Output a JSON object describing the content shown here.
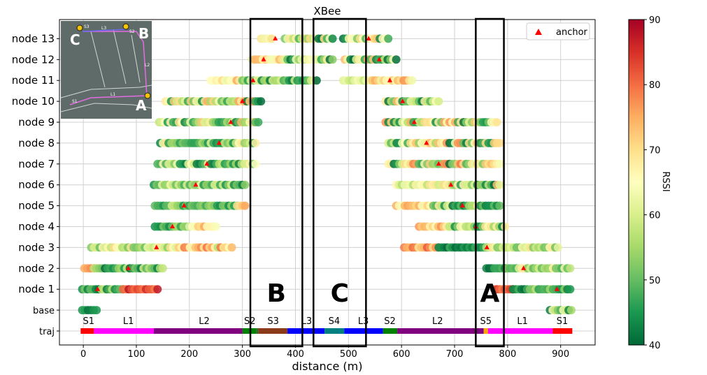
{
  "chart_data": {
    "type": "scatter",
    "title": "XBee",
    "xlabel": "distance (m)",
    "xlim": [
      -45,
      965
    ],
    "xticks": [
      "0",
      "100",
      "200",
      "300",
      "400",
      "500",
      "600",
      "700",
      "800",
      "900"
    ],
    "xtick_values": [
      0,
      100,
      200,
      300,
      400,
      500,
      600,
      700,
      800,
      900
    ],
    "rows": [
      "traj",
      "base",
      "node 1",
      "node 2",
      "node 3",
      "node 4",
      "node 5",
      "node 6",
      "node 7",
      "node 8",
      "node 9",
      "node 10",
      "node 11",
      "node 12",
      "node 13"
    ],
    "grid": true,
    "colorbar": {
      "label": "RSSI",
      "min": 40,
      "max": 90,
      "ticks": [
        "40",
        "50",
        "60",
        "70",
        "80",
        "90"
      ],
      "tick_values": [
        40,
        50,
        60,
        70,
        80,
        90
      ]
    },
    "legend": {
      "label": "anchor",
      "placement": "top-right"
    },
    "segments": [
      {
        "label": "S1",
        "from": -5,
        "to": 20,
        "color": "#ff0000"
      },
      {
        "label": "L1",
        "from": 20,
        "to": 133,
        "color": "#ff00ff"
      },
      {
        "label": "L2",
        "from": 133,
        "to": 300,
        "color": "#800080"
      },
      {
        "label": "S2",
        "from": 300,
        "to": 326,
        "color": "#008000"
      },
      {
        "label": "",
        "from": 326,
        "to": 330,
        "color": "#2d6b2d"
      },
      {
        "label": "S3",
        "from": 330,
        "to": 385,
        "color": "#8b3a1a"
      },
      {
        "label": "L3",
        "from": 385,
        "to": 455,
        "color": "#0000ff"
      },
      {
        "label": "S4",
        "from": 455,
        "to": 492,
        "color": "#008080"
      },
      {
        "label": "L3",
        "from": 492,
        "to": 565,
        "color": "#0000ff"
      },
      {
        "label": "S2",
        "from": 565,
        "to": 592,
        "color": "#008000"
      },
      {
        "label": "L2",
        "from": 592,
        "to": 755,
        "color": "#800080"
      },
      {
        "label": "S5",
        "from": 755,
        "to": 763,
        "color": "#ffa500"
      },
      {
        "label": "L1",
        "from": 763,
        "to": 885,
        "color": "#ff00ff"
      },
      {
        "label": "S1",
        "from": 885,
        "to": 922,
        "color": "#ff0000"
      }
    ],
    "segment_label_positions": [
      10,
      85,
      228,
      314,
      358,
      421,
      473,
      528,
      578,
      668,
      759,
      828,
      903
    ],
    "series": [
      {
        "name": "base",
        "bands": [
          {
            "from": -2,
            "to": 25,
            "rssi": [
              40,
              50
            ]
          },
          {
            "from": 880,
            "to": 920,
            "rssi": [
              40,
              70
            ]
          }
        ],
        "anchors": []
      },
      {
        "name": "node 1",
        "bands": [
          {
            "from": -2,
            "to": 75,
            "rssi": [
              40,
              58
            ]
          },
          {
            "from": 75,
            "to": 140,
            "rssi": [
              78,
              88
            ]
          },
          {
            "from": 775,
            "to": 810,
            "rssi": [
              76,
              86
            ]
          },
          {
            "from": 810,
            "to": 918,
            "rssi": [
              40,
              58
            ]
          }
        ],
        "anchors": [
          27,
          893
        ]
      },
      {
        "name": "node 2",
        "bands": [
          {
            "from": 2,
            "to": 20,
            "rssi": [
              65,
              78
            ]
          },
          {
            "from": 20,
            "to": 150,
            "rssi": [
              40,
              60
            ]
          },
          {
            "from": 760,
            "to": 800,
            "rssi": [
              40,
              50
            ]
          },
          {
            "from": 800,
            "to": 918,
            "rssi": [
              48,
              72
            ]
          }
        ],
        "anchors": [
          85,
          830
        ]
      },
      {
        "name": "node 3",
        "bands": [
          {
            "from": 15,
            "to": 180,
            "rssi": [
              50,
              72
            ]
          },
          {
            "from": 180,
            "to": 280,
            "rssi": [
              55,
              80
            ]
          },
          {
            "from": 605,
            "to": 670,
            "rssi": [
              68,
              82
            ]
          },
          {
            "from": 670,
            "to": 760,
            "rssi": [
              40,
              48
            ]
          },
          {
            "from": 760,
            "to": 895,
            "rssi": [
              50,
              72
            ]
          }
        ],
        "anchors": [
          138,
          761
        ]
      },
      {
        "name": "node 4",
        "bands": [
          {
            "from": 135,
            "to": 200,
            "rssi": [
              40,
              56
            ]
          },
          {
            "from": 200,
            "to": 250,
            "rssi": [
              62,
              76
            ]
          },
          {
            "from": 633,
            "to": 690,
            "rssi": [
              62,
              78
            ]
          },
          {
            "from": 690,
            "to": 795,
            "rssi": [
              40,
              72
            ]
          }
        ],
        "anchors": [
          168,
          740
        ]
      },
      {
        "name": "node 5",
        "bands": [
          {
            "from": 135,
            "to": 290,
            "rssi": [
              44,
              60
            ]
          },
          {
            "from": 290,
            "to": 305,
            "rssi": [
              66,
              76
            ]
          },
          {
            "from": 590,
            "to": 660,
            "rssi": [
              64,
              76
            ]
          },
          {
            "from": 660,
            "to": 785,
            "rssi": [
              40,
              70
            ]
          }
        ],
        "anchors": [
          190,
          715
        ]
      },
      {
        "name": "node 6",
        "bands": [
          {
            "from": 133,
            "to": 305,
            "rssi": [
              42,
              66
            ]
          },
          {
            "from": 590,
            "to": 680,
            "rssi": [
              56,
              70
            ]
          },
          {
            "from": 680,
            "to": 785,
            "rssi": [
              40,
              74
            ]
          }
        ],
        "anchors": [
          212,
          693
        ]
      },
      {
        "name": "node 7",
        "bands": [
          {
            "from": 140,
            "to": 325,
            "rssi": [
              42,
              68
            ]
          },
          {
            "from": 575,
            "to": 785,
            "rssi": [
              40,
              80
            ]
          }
        ],
        "anchors": [
          233,
          670
        ]
      },
      {
        "name": "node 8",
        "bands": [
          {
            "from": 145,
            "to": 325,
            "rssi": [
              42,
              70
            ]
          },
          {
            "from": 575,
            "to": 785,
            "rssi": [
              40,
              78
            ]
          }
        ],
        "anchors": [
          256,
          647
        ]
      },
      {
        "name": "node 9",
        "bands": [
          {
            "from": 143,
            "to": 330,
            "rssi": [
              42,
              76
            ]
          },
          {
            "from": 570,
            "to": 780,
            "rssi": [
              40,
              78
            ]
          }
        ],
        "anchors": [
          278,
          624
        ]
      },
      {
        "name": "node 10",
        "bands": [
          {
            "from": 155,
            "to": 335,
            "rssi": [
              40,
              78
            ]
          },
          {
            "from": 570,
            "to": 670,
            "rssi": [
              40,
              76
            ]
          }
        ],
        "anchors": [
          300,
          602
        ]
      },
      {
        "name": "node 11",
        "bands": [
          {
            "from": 240,
            "to": 300,
            "rssi": [
              62,
              76
            ]
          },
          {
            "from": 300,
            "to": 440,
            "rssi": [
              40,
              62
            ]
          },
          {
            "from": 490,
            "to": 545,
            "rssi": [
              56,
              68
            ]
          },
          {
            "from": 545,
            "to": 620,
            "rssi": [
              62,
              78
            ]
          }
        ],
        "anchors": [
          320,
          578
        ]
      },
      {
        "name": "node 12",
        "bands": [
          {
            "from": 318,
            "to": 380,
            "rssi": [
              60,
              76
            ]
          },
          {
            "from": 380,
            "to": 470,
            "rssi": [
              40,
              68
            ]
          },
          {
            "from": 493,
            "to": 590,
            "rssi": [
              40,
              76
            ]
          }
        ],
        "anchors": [
          340,
          558
        ]
      },
      {
        "name": "node 13",
        "bands": [
          {
            "from": 335,
            "to": 355,
            "rssi": [
              62,
              70
            ]
          },
          {
            "from": 380,
            "to": 470,
            "rssi": [
              40,
              72
            ]
          },
          {
            "from": 490,
            "to": 575,
            "rssi": [
              40,
              74
            ]
          }
        ],
        "anchors": [
          362,
          538
        ]
      }
    ],
    "highlight_boxes": [
      {
        "label": "B",
        "from": 315,
        "to": 413
      },
      {
        "label": "C",
        "from": 434,
        "to": 533
      },
      {
        "label": "A",
        "from": 740,
        "to": 793
      }
    ],
    "inset_map": {
      "labels": [
        "C",
        "B",
        "A"
      ],
      "path_labels": [
        "S1",
        "L1",
        "L2",
        "S2",
        "L3",
        "S3"
      ]
    }
  }
}
